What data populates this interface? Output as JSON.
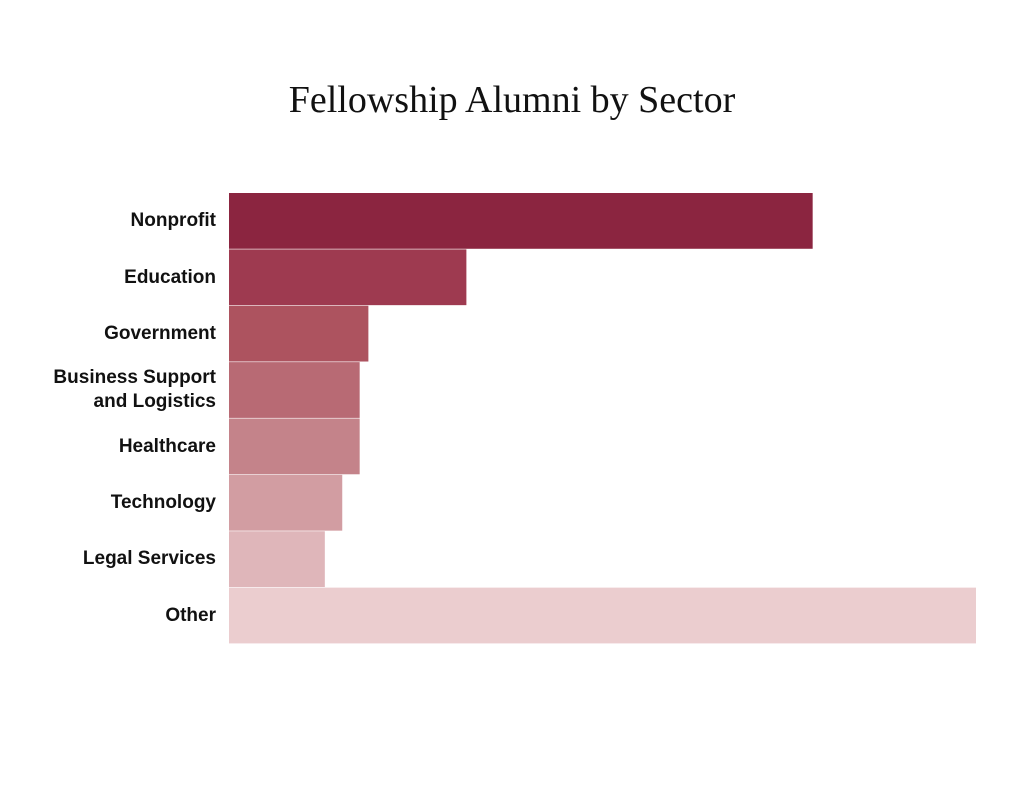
{
  "chart_data": {
    "type": "bar",
    "orientation": "horizontal",
    "title": "Fellowship Alumni by Sector",
    "categories": [
      "Nonprofit",
      "Education",
      "Government",
      "Business Support and Logistics",
      "Healthcare",
      "Technology",
      "Legal Services",
      "Other"
    ],
    "values": [
      26.8,
      10.9,
      6.4,
      6.0,
      6.0,
      5.2,
      4.4,
      34.3
    ],
    "colors": [
      "#8b2540",
      "#9e3a50",
      "#ad535f",
      "#b86a74",
      "#c4838a",
      "#d29da2",
      "#dfb6ba",
      "#ebcdcf"
    ]
  }
}
